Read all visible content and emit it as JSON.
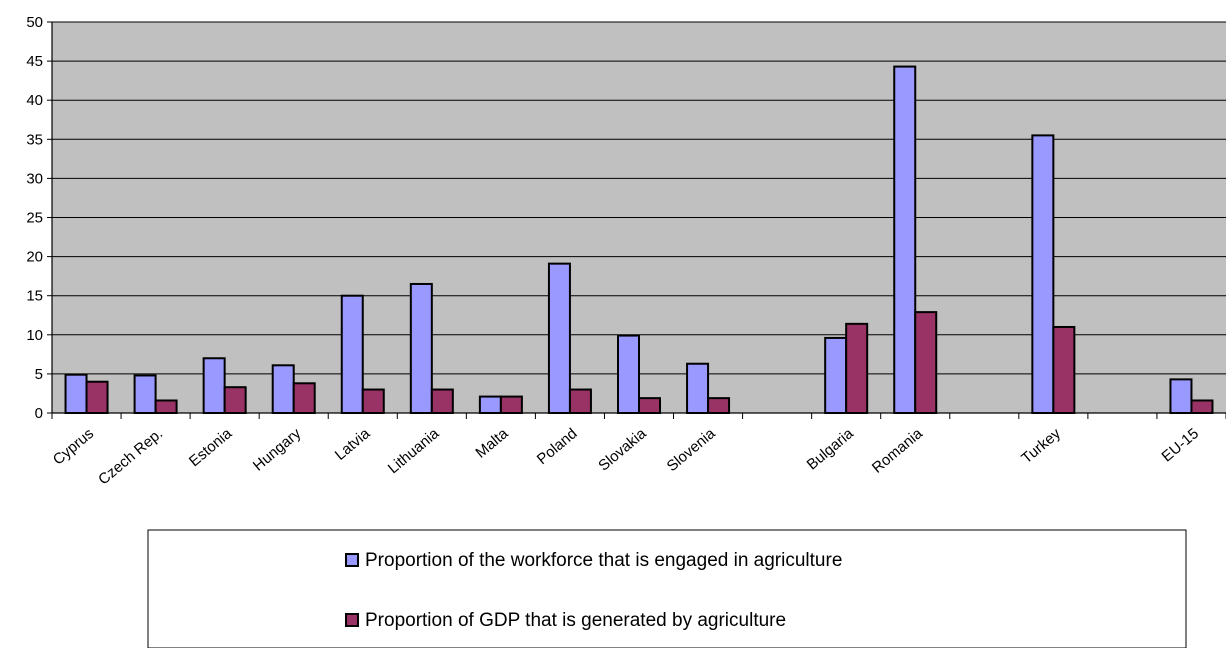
{
  "chart_data": {
    "type": "bar",
    "categories": [
      "Cyprus",
      "Czech Rep.",
      "Estonia",
      "Hungary",
      "Latvia",
      "Lithuania",
      "Malta",
      "Poland",
      "Slovakia",
      "Slovenia",
      "",
      "Bulgaria",
      "Romania",
      "",
      "Turkey",
      "",
      "EU-15"
    ],
    "series": [
      {
        "name": "Proportion of the workforce that is engaged in agriculture",
        "color": "#9999ff",
        "values": [
          4.9,
          4.8,
          7.0,
          6.1,
          15.0,
          16.5,
          2.1,
          19.1,
          9.9,
          6.3,
          null,
          9.6,
          44.3,
          null,
          35.5,
          null,
          4.3
        ]
      },
      {
        "name": "Proportion of GDP that is generated by agriculture",
        "color": "#993366",
        "values": [
          4.0,
          1.6,
          3.3,
          3.8,
          3.0,
          3.0,
          2.1,
          3.0,
          1.9,
          1.9,
          null,
          11.4,
          12.9,
          null,
          11.0,
          null,
          1.6
        ]
      }
    ],
    "y_ticks": [
      "0",
      "5",
      "10",
      "15",
      "20",
      "25",
      "30",
      "35",
      "40",
      "45",
      "50"
    ],
    "ylim": [
      0,
      50
    ],
    "grid": true,
    "plot_background": "#c0c0c0",
    "legend_placement": "bottom"
  }
}
